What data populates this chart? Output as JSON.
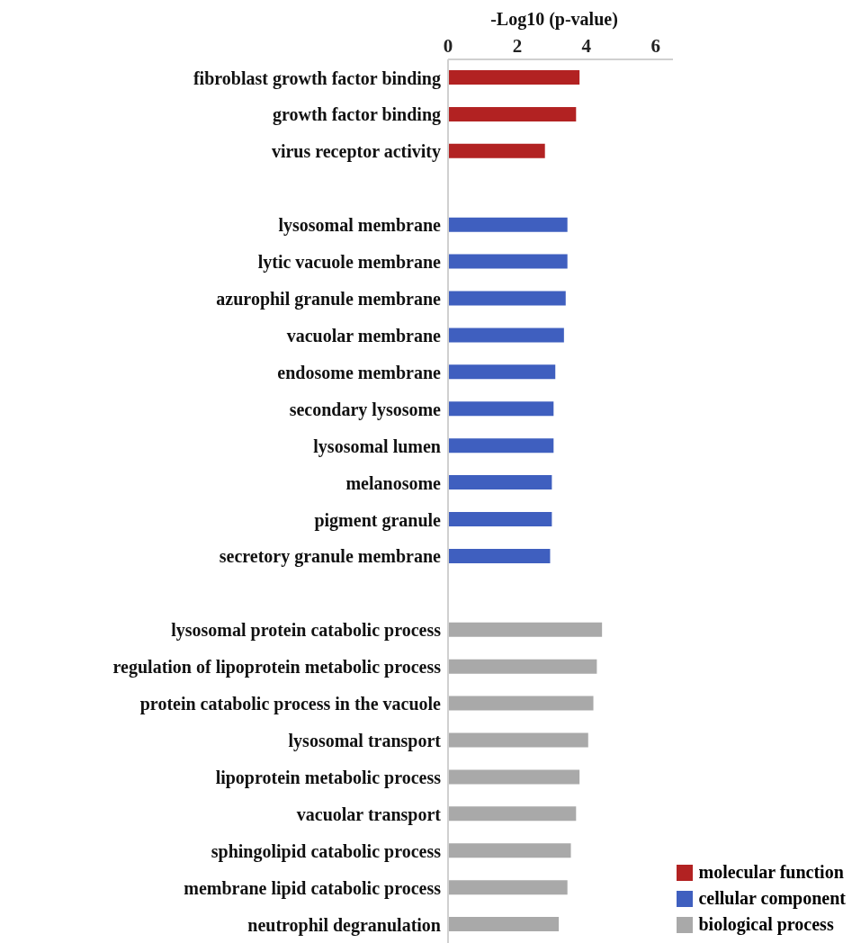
{
  "chart_data": {
    "type": "bar",
    "orientation": "horizontal",
    "stacked": true,
    "xlabel": "-Log10 (p-value)",
    "categories": [
      "fibroblast growth factor binding",
      "growth factor binding",
      "virus receptor activity",
      null,
      "lysosomal membrane",
      "lytic vacuole membrane",
      "azurophil granule membrane",
      "vacuolar membrane",
      "endosome membrane",
      "secondary lysosome",
      "lysosomal lumen",
      "melanosome",
      "pigment granule",
      "secretory granule membrane",
      null,
      "lysosomal protein catabolic process",
      "regulation of lipoprotein metabolic process",
      "protein catabolic process in the vacuole",
      "lysosomal transport",
      "lipoprotein metabolic process",
      "vacuolar transport",
      "sphingolipid catabolic process",
      "membrane lipid catabolic process",
      "neutrophil degranulation"
    ],
    "series": [
      {
        "name": "molecular function",
        "color": "#b22222",
        "values": [
          3.8,
          3.7,
          2.8,
          null,
          null,
          null,
          null,
          null,
          null,
          null,
          null,
          null,
          null,
          null,
          null,
          null,
          null,
          null,
          null,
          null,
          null,
          null,
          null,
          null
        ]
      },
      {
        "name": "cellular component",
        "color": "#3f5fbf",
        "values": [
          null,
          null,
          null,
          null,
          3.45,
          3.45,
          3.4,
          3.35,
          3.1,
          3.05,
          3.05,
          3.0,
          3.0,
          2.95,
          null,
          null,
          null,
          null,
          null,
          null,
          null,
          null,
          null,
          null
        ]
      },
      {
        "name": "biological process",
        "color": "#a9a9a9",
        "values": [
          null,
          null,
          null,
          null,
          null,
          null,
          null,
          null,
          null,
          null,
          null,
          null,
          null,
          null,
          null,
          4.45,
          4.3,
          4.2,
          4.05,
          3.8,
          3.7,
          3.55,
          3.45,
          3.2
        ]
      }
    ],
    "xlim": [
      0,
      6.5
    ],
    "xticks": [
      0,
      2,
      4,
      6
    ],
    "grid": false,
    "legend": "bottom right"
  }
}
